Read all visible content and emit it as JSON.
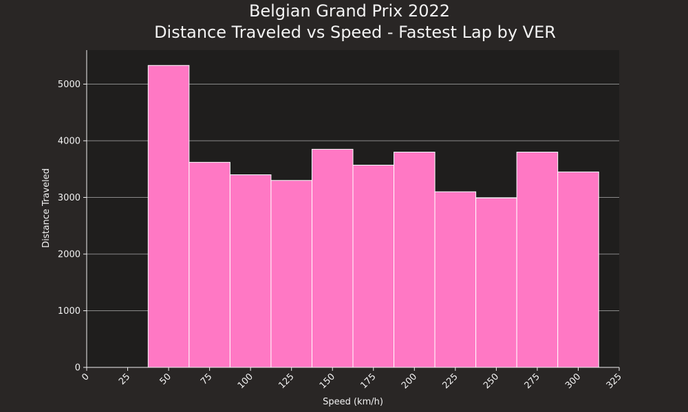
{
  "chart_data": {
    "type": "bar",
    "title": "Belgian Grand Prix 2022",
    "subtitle": "Distance Traveled vs Speed - Fastest Lap by VER",
    "xlabel": "Speed (km/h)",
    "ylabel": "Distance Traveled",
    "xlim": [
      0,
      325
    ],
    "ylim": [
      0,
      5600
    ],
    "x_ticks": [
      0,
      25,
      50,
      75,
      100,
      125,
      150,
      175,
      200,
      225,
      250,
      275,
      300,
      325
    ],
    "y_ticks": [
      0,
      1000,
      2000,
      3000,
      4000,
      5000
    ],
    "bins": [
      {
        "start": 37.5,
        "end": 62.5,
        "value": 5330
      },
      {
        "start": 62.5,
        "end": 87.5,
        "value": 3620
      },
      {
        "start": 87.5,
        "end": 112.5,
        "value": 3400
      },
      {
        "start": 112.5,
        "end": 137.5,
        "value": 3300
      },
      {
        "start": 137.5,
        "end": 162.5,
        "value": 3850
      },
      {
        "start": 162.5,
        "end": 187.5,
        "value": 3570
      },
      {
        "start": 187.5,
        "end": 212.5,
        "value": 3800
      },
      {
        "start": 212.5,
        "end": 237.5,
        "value": 3100
      },
      {
        "start": 237.5,
        "end": 262.5,
        "value": 2990
      },
      {
        "start": 262.5,
        "end": 287.5,
        "value": 3800
      },
      {
        "start": 287.5,
        "end": 312.5,
        "value": 3450
      }
    ],
    "grid": {
      "y": true,
      "x": false
    },
    "colors": {
      "bar_fill": "#ff78c4",
      "bar_edge": "#ffffff",
      "plot_bg": "#1f1e1d",
      "figure_bg": "#292625",
      "grid": "#b0b0b0",
      "text": "#f2f2f2"
    }
  }
}
